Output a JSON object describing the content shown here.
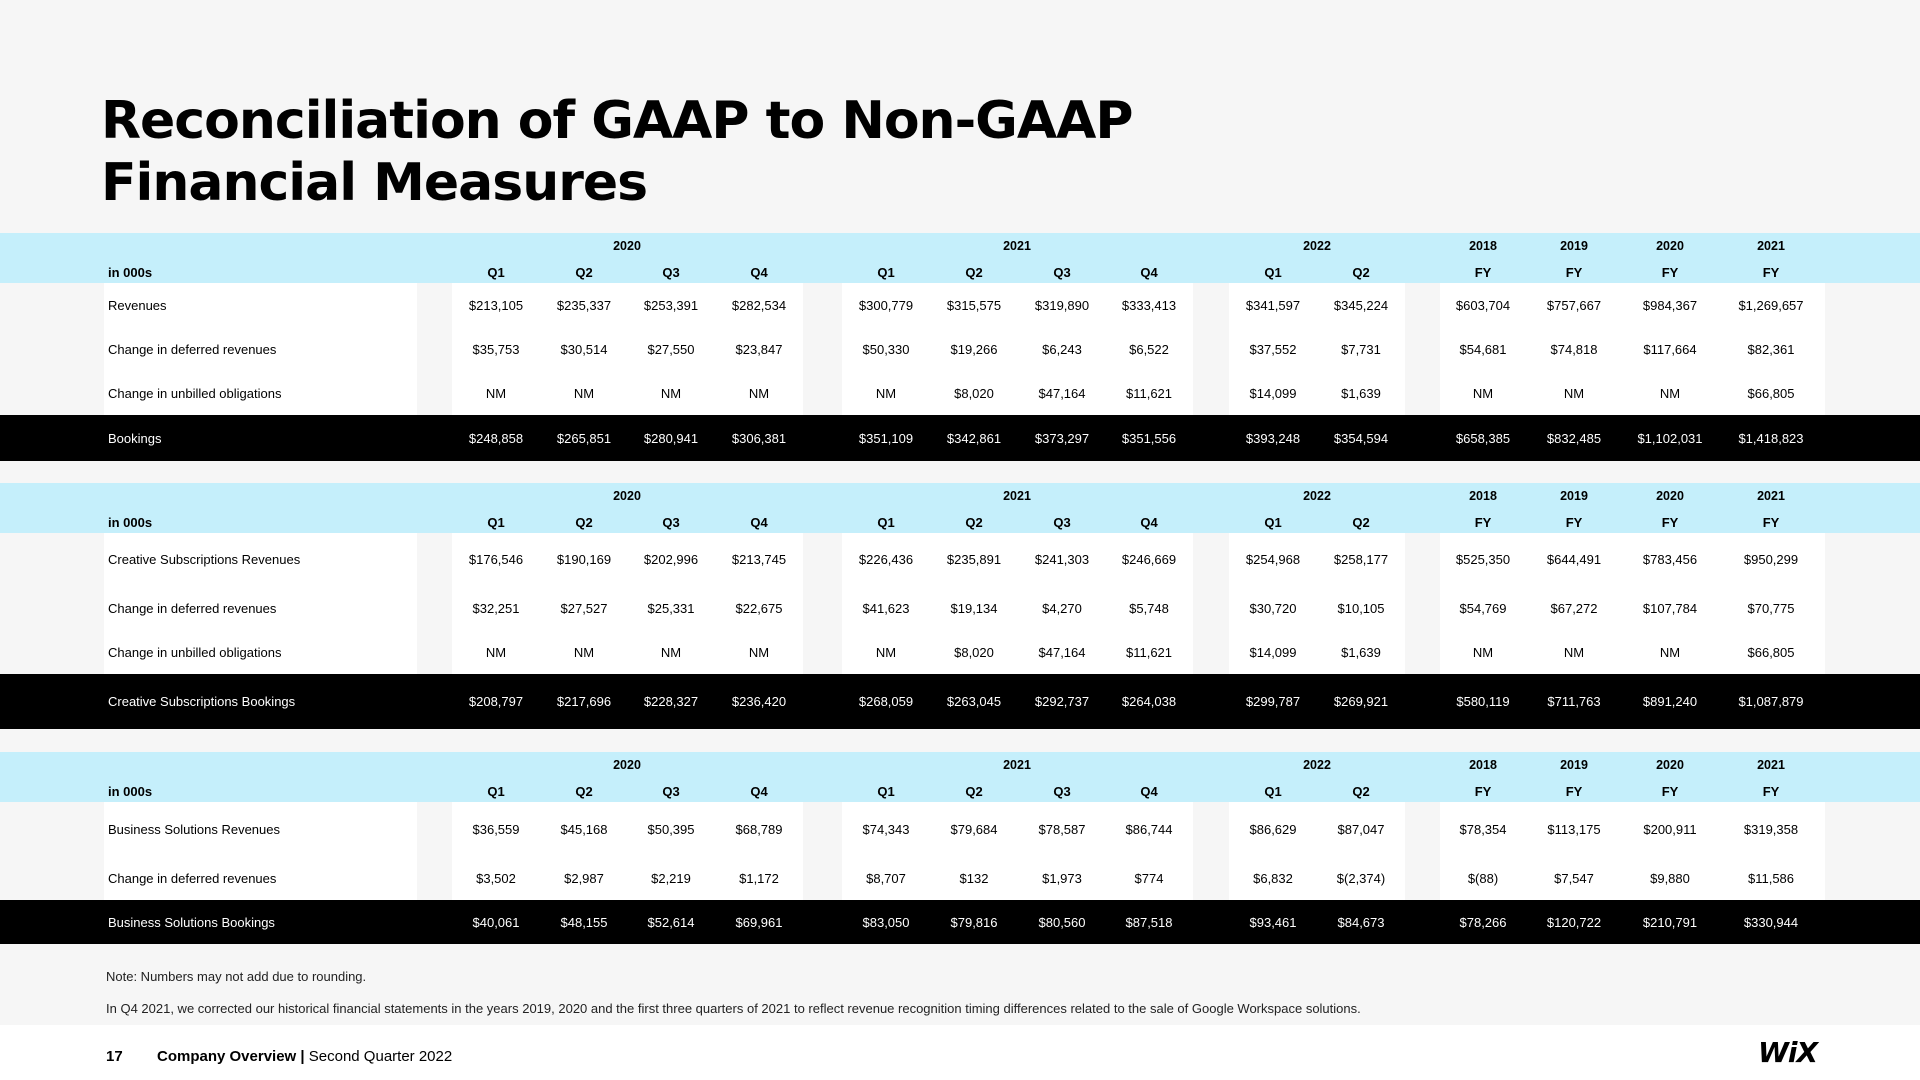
{
  "title_line1": "Reconciliation of GAAP to Non-GAAP",
  "title_line2": "Financial Measures",
  "tables": [
    {
      "label_header": "in 000s",
      "group_years": [
        "2020",
        "2021",
        "2022"
      ],
      "fy_years": [
        "2018",
        "2019",
        "2020",
        "2021"
      ],
      "quarters": [
        "Q1",
        "Q2",
        "Q3",
        "Q4",
        "Q1",
        "Q2",
        "Q3",
        "Q4",
        "Q1",
        "Q2"
      ],
      "fy": [
        "FY",
        "FY",
        "FY",
        "FY"
      ],
      "rows": [
        {
          "label": "Revenues",
          "values": [
            "$213,105",
            "$235,337",
            "$253,391",
            "$282,534",
            "$300,779",
            "$315,575",
            "$319,890",
            "$333,413",
            "$341,597",
            "$345,224",
            "$603,704",
            "$757,667",
            "$984,367",
            "$1,269,657"
          ]
        },
        {
          "label": "Change in deferred revenues",
          "values": [
            "$35,753",
            "$30,514",
            "$27,550",
            "$23,847",
            "$50,330",
            "$19,266",
            "$6,243",
            "$6,522",
            "$37,552",
            "$7,731",
            "$54,681",
            "$74,818",
            "$117,664",
            "$82,361"
          ]
        },
        {
          "label": "Change in unbilled obligations",
          "values": [
            "NM",
            "NM",
            "NM",
            "NM",
            "NM",
            "$8,020",
            "$47,164",
            "$11,621",
            "$14,099",
            "$1,639",
            "NM",
            "NM",
            "NM",
            "$66,805"
          ]
        }
      ],
      "total": {
        "label": "Bookings",
        "values": [
          "$248,858",
          "$265,851",
          "$280,941",
          "$306,381",
          "$351,109",
          "$342,861",
          "$373,297",
          "$351,556",
          "$393,248",
          "$354,594",
          "$658,385",
          "$832,485",
          "$1,102,031",
          "$1,418,823"
        ]
      }
    },
    {
      "label_header": "in 000s",
      "group_years": [
        "2020",
        "2021",
        "2022"
      ],
      "fy_years": [
        "2018",
        "2019",
        "2020",
        "2021"
      ],
      "quarters": [
        "Q1",
        "Q2",
        "Q3",
        "Q4",
        "Q1",
        "Q2",
        "Q3",
        "Q4",
        "Q1",
        "Q2"
      ],
      "fy": [
        "FY",
        "FY",
        "FY",
        "FY"
      ],
      "rows": [
        {
          "label": "Creative Subscriptions Revenues",
          "values": [
            "$176,546",
            "$190,169",
            "$202,996",
            "$213,745",
            "$226,436",
            "$235,891",
            "$241,303",
            "$246,669",
            "$254,968",
            "$258,177",
            "$525,350",
            "$644,491",
            "$783,456",
            "$950,299"
          ]
        },
        {
          "label": "Change in deferred revenues",
          "values": [
            "$32,251",
            "$27,527",
            "$25,331",
            "$22,675",
            "$41,623",
            "$19,134",
            "$4,270",
            "$5,748",
            "$30,720",
            "$10,105",
            "$54,769",
            "$67,272",
            "$107,784",
            "$70,775"
          ]
        },
        {
          "label": "Change in unbilled obligations",
          "values": [
            "NM",
            "NM",
            "NM",
            "NM",
            "NM",
            "$8,020",
            "$47,164",
            "$11,621",
            "$14,099",
            "$1,639",
            "NM",
            "NM",
            "NM",
            "$66,805"
          ]
        }
      ],
      "total": {
        "label": "Creative Subscriptions Bookings",
        "values": [
          "$208,797",
          "$217,696",
          "$228,327",
          "$236,420",
          "$268,059",
          "$263,045",
          "$292,737",
          "$264,038",
          "$299,787",
          "$269,921",
          "$580,119",
          "$711,763",
          "$891,240",
          "$1,087,879"
        ]
      }
    },
    {
      "label_header": "in 000s",
      "group_years": [
        "2020",
        "2021",
        "2022"
      ],
      "fy_years": [
        "2018",
        "2019",
        "2020",
        "2021"
      ],
      "quarters": [
        "Q1",
        "Q2",
        "Q3",
        "Q4",
        "Q1",
        "Q2",
        "Q3",
        "Q4",
        "Q1",
        "Q2"
      ],
      "fy": [
        "FY",
        "FY",
        "FY",
        "FY"
      ],
      "rows": [
        {
          "label": "Business Solutions Revenues",
          "values": [
            "$36,559",
            "$45,168",
            "$50,395",
            "$68,789",
            "$74,343",
            "$79,684",
            "$78,587",
            "$86,744",
            "$86,629",
            "$87,047",
            "$78,354",
            "$113,175",
            "$200,911",
            "$319,358"
          ]
        },
        {
          "label": "Change in deferred revenues",
          "values": [
            "$3,502",
            "$2,987",
            "$2,219",
            "$1,172",
            "$8,707",
            "$132",
            "$1,973",
            "$774",
            "$6,832",
            "$(2,374)",
            "$(88)",
            "$7,547",
            "$9,880",
            "$11,586"
          ]
        }
      ],
      "total": {
        "label": "Business Solutions Bookings",
        "values": [
          "$40,061",
          "$48,155",
          "$52,614",
          "$69,961",
          "$83,050",
          "$79,816",
          "$80,560",
          "$87,518",
          "$93,461",
          "$84,673",
          "$78,266",
          "$120,722",
          "$210,791",
          "$330,944"
        ]
      }
    }
  ],
  "note1": "Note: Numbers may not add due to rounding.",
  "note2": "In Q4 2021, we corrected our historical financial statements in the years 2019, 2020 and the first three quarters of 2021 to reflect revenue recognition timing differences related to the sale of Google Workspace solutions.",
  "footer": {
    "page_number": "17",
    "company": "Company Overview",
    "separator": "|",
    "period": "Second Quarter 2022"
  },
  "logo": "WiX"
}
